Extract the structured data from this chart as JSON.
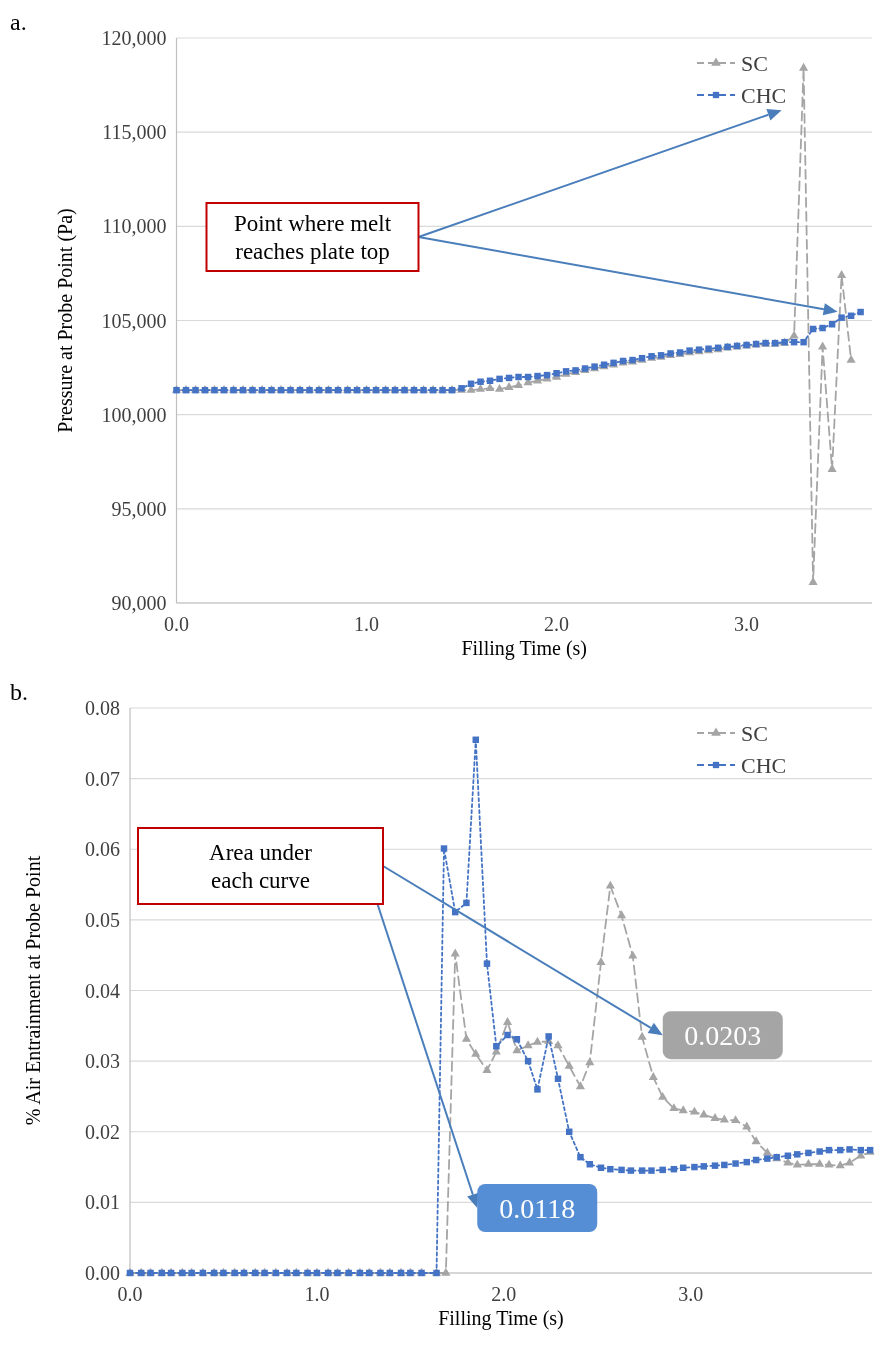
{
  "chart_data": [
    {
      "type": "line",
      "title": "a.",
      "xlabel": "Filling Time (s)",
      "ylabel": "Pressure at Probe Point (Pa)",
      "xlim": [
        0,
        3.66
      ],
      "xticks": [
        {
          "value": 0,
          "label": "0.0"
        },
        {
          "value": 1,
          "label": "1.0"
        },
        {
          "value": 2,
          "label": "2.0"
        },
        {
          "value": 3,
          "label": "3.0"
        }
      ],
      "ylim": [
        90000,
        120000
      ],
      "yticks": [
        {
          "value": 90000,
          "label": "90,000"
        },
        {
          "value": 95000,
          "label": "95,000"
        },
        {
          "value": 100000,
          "label": "100,000"
        },
        {
          "value": 105000,
          "label": "105,000"
        },
        {
          "value": 110000,
          "label": "110,000"
        },
        {
          "value": 115000,
          "label": "115,000"
        },
        {
          "value": 120000,
          "label": "120,000"
        }
      ],
      "grid": "y",
      "legend": "top right",
      "series": [
        {
          "name": "SC",
          "color": "#a5a5a5",
          "marker": "triangle",
          "line_style": "dashed",
          "x": [
            0,
            0.05,
            0.1,
            0.15,
            0.2,
            0.25,
            0.3,
            0.35,
            0.4,
            0.45,
            0.5,
            0.55,
            0.6,
            0.65,
            0.7,
            0.75,
            0.8,
            0.85,
            0.9,
            0.95,
            1.0,
            1.05,
            1.1,
            1.15,
            1.2,
            1.25,
            1.3,
            1.35,
            1.4,
            1.45,
            1.5,
            1.55,
            1.6,
            1.65,
            1.7,
            1.75,
            1.8,
            1.85,
            1.9,
            1.95,
            2.0,
            2.05,
            2.1,
            2.15,
            2.2,
            2.25,
            2.3,
            2.35,
            2.4,
            2.45,
            2.5,
            2.55,
            2.6,
            2.65,
            2.7,
            2.75,
            2.8,
            2.85,
            2.9,
            2.95,
            3.0,
            3.05,
            3.1,
            3.15,
            3.2,
            3.25,
            3.3,
            3.35,
            3.4,
            3.45,
            3.5,
            3.55
          ],
          "values": [
            101300,
            101300,
            101300,
            101300,
            101300,
            101300,
            101300,
            101300,
            101300,
            101300,
            101300,
            101300,
            101300,
            101300,
            101300,
            101300,
            101300,
            101300,
            101300,
            101300,
            101300,
            101300,
            101300,
            101300,
            101300,
            101300,
            101300,
            101300,
            101300,
            101300,
            101300,
            101300,
            101350,
            101400,
            101350,
            101450,
            101550,
            101700,
            101800,
            101900,
            102000,
            102150,
            102250,
            102350,
            102450,
            102550,
            102650,
            102750,
            102800,
            102900,
            103000,
            103050,
            103150,
            103200,
            103300,
            103350,
            103400,
            103450,
            103550,
            103600,
            103650,
            103700,
            103750,
            103750,
            103800,
            104190,
            118400,
            91100,
            103600,
            97100,
            107400,
            102900
          ]
        },
        {
          "name": "CHC",
          "color": "#4472c4",
          "marker": "square",
          "line_style": "dotted",
          "x": [
            0,
            0.05,
            0.1,
            0.15,
            0.2,
            0.25,
            0.3,
            0.35,
            0.4,
            0.45,
            0.5,
            0.55,
            0.6,
            0.65,
            0.7,
            0.75,
            0.8,
            0.85,
            0.9,
            0.95,
            1.0,
            1.05,
            1.1,
            1.15,
            1.2,
            1.25,
            1.3,
            1.35,
            1.4,
            1.45,
            1.5,
            1.55,
            1.6,
            1.65,
            1.7,
            1.75,
            1.8,
            1.85,
            1.9,
            1.95,
            2.0,
            2.05,
            2.1,
            2.15,
            2.2,
            2.25,
            2.3,
            2.35,
            2.4,
            2.45,
            2.5,
            2.55,
            2.6,
            2.65,
            2.7,
            2.75,
            2.8,
            2.85,
            2.9,
            2.95,
            3.0,
            3.05,
            3.1,
            3.15,
            3.2,
            3.25,
            3.3,
            3.35,
            3.4,
            3.45,
            3.5,
            3.55,
            3.6
          ],
          "values": [
            101300,
            101300,
            101300,
            101300,
            101300,
            101300,
            101300,
            101300,
            101300,
            101300,
            101300,
            101300,
            101300,
            101300,
            101300,
            101300,
            101300,
            101300,
            101300,
            101300,
            101300,
            101300,
            101300,
            101300,
            101300,
            101300,
            101300,
            101300,
            101300,
            101300,
            101400,
            101640,
            101750,
            101800,
            101900,
            101950,
            102000,
            102000,
            102050,
            102100,
            102200,
            102300,
            102350,
            102450,
            102550,
            102650,
            102750,
            102850,
            102900,
            103000,
            103100,
            103150,
            103250,
            103300,
            103400,
            103450,
            103500,
            103550,
            103600,
            103650,
            103700,
            103750,
            103800,
            103800,
            103850,
            103850,
            103850,
            104550,
            104600,
            104800,
            105150,
            105250,
            105450
          ]
        }
      ],
      "annotations": [
        "Point where melt reaches plate top"
      ]
    },
    {
      "type": "line",
      "title": "b.",
      "xlabel": "Filling Time (s)",
      "ylabel": "% Air Entrainment at Probe Point",
      "xlim": [
        0,
        3.97
      ],
      "xticks": [
        {
          "value": 0,
          "label": "0.0"
        },
        {
          "value": 1,
          "label": "1.0"
        },
        {
          "value": 2,
          "label": "2.0"
        },
        {
          "value": 3,
          "label": "3.0"
        }
      ],
      "ylim": [
        0,
        0.08
      ],
      "yticks": [
        {
          "value": 0,
          "label": "0.00"
        },
        {
          "value": 0.01,
          "label": "0.01"
        },
        {
          "value": 0.02,
          "label": "0.02"
        },
        {
          "value": 0.03,
          "label": "0.03"
        },
        {
          "value": 0.04,
          "label": "0.04"
        },
        {
          "value": 0.05,
          "label": "0.05"
        },
        {
          "value": 0.06,
          "label": "0.06"
        },
        {
          "value": 0.07,
          "label": "0.07"
        },
        {
          "value": 0.08,
          "label": "0.08"
        }
      ],
      "grid": "y",
      "legend": "top right",
      "series": [
        {
          "name": "SC",
          "color": "#a5a5a5",
          "marker": "triangle",
          "line_style": "dashed",
          "x": [
            0,
            0.06,
            0.11,
            0.17,
            0.22,
            0.28,
            0.33,
            0.39,
            0.45,
            0.5,
            0.56,
            0.61,
            0.67,
            0.72,
            0.78,
            0.84,
            0.89,
            0.95,
            1.0,
            1.06,
            1.11,
            1.17,
            1.23,
            1.28,
            1.34,
            1.39,
            1.45,
            1.5,
            1.56,
            1.64,
            1.69,
            1.74,
            1.8,
            1.85,
            1.91,
            1.96,
            2.02,
            2.07,
            2.13,
            2.18,
            2.24,
            2.29,
            2.35,
            2.41,
            2.46,
            2.52,
            2.57,
            2.63,
            2.69,
            2.74,
            2.8,
            2.85,
            2.91,
            2.96,
            3.02,
            3.07,
            3.13,
            3.18,
            3.24,
            3.3,
            3.35,
            3.41,
            3.46,
            3.52,
            3.57,
            3.63,
            3.69,
            3.74,
            3.8,
            3.85,
            3.91,
            3.96
          ],
          "values": [
            0,
            0,
            0,
            0,
            0,
            0,
            0,
            0,
            0,
            0,
            0,
            0,
            0,
            0,
            0,
            0,
            0,
            0,
            0,
            0,
            0,
            0,
            0,
            0,
            0,
            0,
            0,
            0,
            0,
            0,
            0,
            0.0452,
            0.0331,
            0.031,
            0.0287,
            0.0313,
            0.0355,
            0.0315,
            0.0322,
            0.0327,
            0.0328,
            0.0322,
            0.0293,
            0.0264,
            0.0298,
            0.044,
            0.0548,
            0.0506,
            0.0449,
            0.0334,
            0.0277,
            0.0249,
            0.0233,
            0.023,
            0.0228,
            0.0224,
            0.0219,
            0.0217,
            0.0216,
            0.0207,
            0.0186,
            0.017,
            0.0162,
            0.0156,
            0.0153,
            0.0154,
            0.0154,
            0.0153,
            0.0152,
            0.0156,
            0.0166,
            0.0171
          ]
        },
        {
          "name": "CHC",
          "color": "#4472c4",
          "marker": "square",
          "line_style": "dotted",
          "x": [
            0,
            0.06,
            0.11,
            0.17,
            0.22,
            0.28,
            0.33,
            0.39,
            0.45,
            0.5,
            0.56,
            0.61,
            0.67,
            0.72,
            0.78,
            0.84,
            0.89,
            0.95,
            1.0,
            1.06,
            1.11,
            1.17,
            1.23,
            1.28,
            1.34,
            1.39,
            1.45,
            1.5,
            1.56,
            1.64,
            1.68,
            1.74,
            1.8,
            1.85,
            1.91,
            1.96,
            2.02,
            2.07,
            2.13,
            2.18,
            2.24,
            2.29,
            2.35,
            2.41,
            2.46,
            2.52,
            2.57,
            2.63,
            2.68,
            2.74,
            2.79,
            2.85,
            2.91,
            2.96,
            3.02,
            3.07,
            3.13,
            3.18,
            3.24,
            3.3,
            3.35,
            3.41,
            3.46,
            3.52,
            3.57,
            3.63,
            3.69,
            3.74,
            3.8,
            3.85,
            3.91,
            3.96
          ],
          "values": [
            0,
            0,
            0,
            0,
            0,
            0,
            0,
            0,
            0,
            0,
            0,
            0,
            0,
            0,
            0,
            0,
            0,
            0,
            0,
            0,
            0,
            0,
            0,
            0,
            0,
            0,
            0,
            0,
            0,
            0,
            0.0601,
            0.0511,
            0.0524,
            0.0755,
            0.0438,
            0.0321,
            0.0337,
            0.0331,
            0.03,
            0.026,
            0.0335,
            0.0275,
            0.02,
            0.0164,
            0.0154,
            0.0149,
            0.0147,
            0.0146,
            0.0145,
            0.0145,
            0.0145,
            0.0146,
            0.0147,
            0.0149,
            0.015,
            0.0151,
            0.0152,
            0.0153,
            0.0155,
            0.0157,
            0.016,
            0.0162,
            0.0164,
            0.0166,
            0.0168,
            0.017,
            0.0172,
            0.0174,
            0.0174,
            0.0175,
            0.0174,
            0.0174
          ]
        }
      ],
      "annotations": [
        "Area under each curve",
        "0.0203",
        "0.0118"
      ]
    }
  ]
}
